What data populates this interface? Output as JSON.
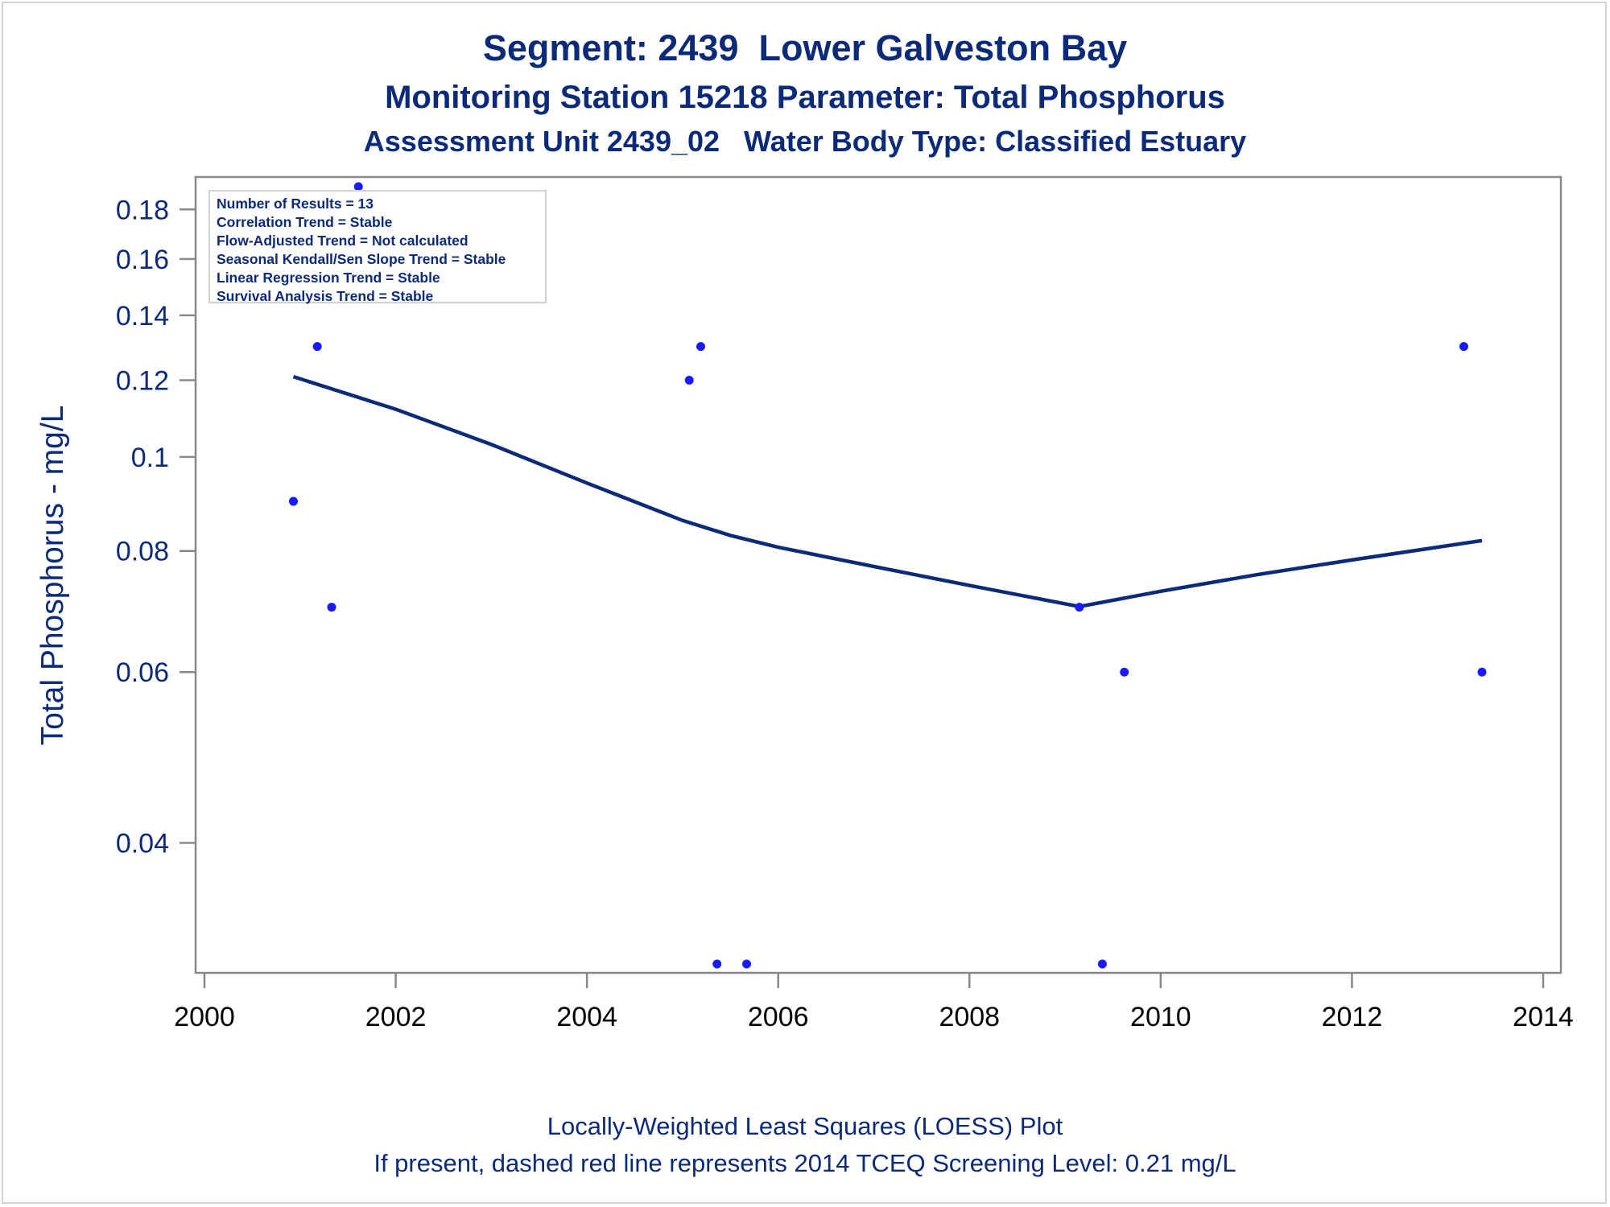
{
  "titles": {
    "line1": "Segment: 2439  Lower Galveston Bay",
    "line2": "Monitoring Station 15218 Parameter: Total Phosphorus",
    "line3": "Assessment Unit 2439_02   Water Body Type: Classified Estuary"
  },
  "footnotes": {
    "line1": "Locally-Weighted Least Squares (LOESS) Plot",
    "line2": "If present, dashed red line represents 2014 TCEQ Screening Level: 0.21 mg/L"
  },
  "stats_box": [
    "Number of Results = 13",
    "Correlation Trend = Stable",
    "Flow-Adjusted Trend = Not calculated",
    "Seasonal Kendall/Sen Slope Trend = Stable",
    "Linear Regression Trend = Stable",
    "Survival Analysis Trend = Stable"
  ],
  "colors": {
    "text": "#0b2a78",
    "points": "#1a1aff",
    "loess_line": "#0b2a78",
    "axis": "#888888"
  },
  "chart_data": {
    "type": "scatter",
    "title": "Segment: 2439  Lower Galveston Bay",
    "xlabel": "",
    "ylabel": "Total Phosphorus - mg/L",
    "y_scale": "log",
    "xlim": [
      2000,
      2014
    ],
    "ylim": [
      0.03,
      0.19
    ],
    "x_ticks": [
      2000,
      2002,
      2004,
      2006,
      2008,
      2010,
      2012,
      2014
    ],
    "y_ticks": [
      0.04,
      0.06,
      0.08,
      0.1,
      0.12,
      0.14,
      0.16,
      0.18
    ],
    "y_tick_labels": [
      "0.04",
      "0.06",
      "0.08",
      "0.1",
      "0.12",
      "0.14",
      "0.16",
      "0.18"
    ],
    "points": [
      {
        "x": 2000.93,
        "y": 0.09
      },
      {
        "x": 2001.18,
        "y": 0.13
      },
      {
        "x": 2001.33,
        "y": 0.07
      },
      {
        "x": 2001.61,
        "y": 0.19
      },
      {
        "x": 2005.07,
        "y": 0.12
      },
      {
        "x": 2005.19,
        "y": 0.13
      },
      {
        "x": 2005.36,
        "y": 0.03
      },
      {
        "x": 2005.67,
        "y": 0.03
      },
      {
        "x": 2009.15,
        "y": 0.07
      },
      {
        "x": 2009.39,
        "y": 0.03
      },
      {
        "x": 2009.62,
        "y": 0.06
      },
      {
        "x": 2013.17,
        "y": 0.13
      },
      {
        "x": 2013.36,
        "y": 0.06
      }
    ],
    "loess": {
      "x": [
        2000.93,
        2002,
        2003,
        2004,
        2005,
        2005.5,
        2006,
        2007,
        2008,
        2009.15,
        2010,
        2011,
        2012,
        2013.36
      ],
      "y": [
        0.121,
        0.112,
        0.103,
        0.094,
        0.086,
        0.083,
        0.0807,
        0.0771,
        0.0737,
        0.0701,
        0.0727,
        0.0756,
        0.0783,
        0.082
      ]
    }
  }
}
